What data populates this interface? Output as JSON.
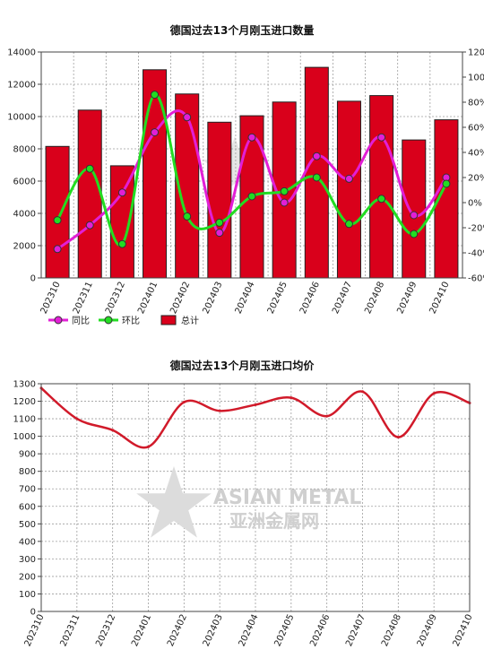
{
  "colors": {
    "bar": "#d9001b",
    "yoy": "#e21fd6",
    "mom": "#22dd22",
    "price": "#d11a2a",
    "grid": "#9e9e9e"
  },
  "watermark": {
    "en": "ASIAN METAL",
    "cn": "亚洲金属网"
  },
  "chart_data": [
    {
      "type": "bar+line",
      "title": "德国过去13个月刚玉进口数量",
      "categories": [
        "202310",
        "202311",
        "202312",
        "202401",
        "202402",
        "202403",
        "202404",
        "202405",
        "202406",
        "202407",
        "202408",
        "202409",
        "202410"
      ],
      "left_axis": {
        "ylim": [
          0,
          14000
        ],
        "ticks": [
          "0",
          "2000",
          "4000",
          "6000",
          "8000",
          "10000",
          "12000",
          "14000"
        ]
      },
      "right_axis": {
        "ylim": [
          -60,
          120
        ],
        "ticks": [
          "-60%",
          "-40%",
          "-20%",
          "0%",
          "20%",
          "40%",
          "60%",
          "80%",
          "100%",
          "120%"
        ]
      },
      "legend_position": "bottom-left",
      "series": [
        {
          "name": "同比",
          "type": "line",
          "axis": "right",
          "values": [
            -37,
            -18,
            8,
            56,
            68,
            -24,
            52,
            0,
            37,
            19,
            52,
            -10,
            20
          ]
        },
        {
          "name": "环比",
          "type": "line",
          "axis": "right",
          "values": [
            -14,
            27,
            -33,
            86,
            -11,
            -16,
            5,
            9,
            20,
            -17,
            3,
            -25,
            15
          ]
        },
        {
          "name": "总计",
          "type": "bar",
          "axis": "left",
          "values": [
            8150,
            10400,
            6950,
            12900,
            11400,
            9650,
            10050,
            10900,
            13050,
            10950,
            11300,
            8550,
            9800
          ]
        }
      ]
    },
    {
      "type": "line",
      "title": "德国过去13个月刚玉进口均价",
      "categories": [
        "202310",
        "202311",
        "202312",
        "202401",
        "202402",
        "202403",
        "202404",
        "202405",
        "202406",
        "202407",
        "202408",
        "202409",
        "202410"
      ],
      "ylim": [
        0,
        1300
      ],
      "ticks": [
        "0",
        "100",
        "200",
        "300",
        "400",
        "500",
        "600",
        "700",
        "800",
        "900",
        "1000",
        "1100",
        "1200",
        "1300"
      ],
      "grid": true,
      "series": [
        {
          "values": [
            1275,
            1100,
            1035,
            940,
            1195,
            1145,
            1180,
            1220,
            1115,
            1255,
            995,
            1245,
            1190
          ]
        }
      ]
    }
  ]
}
